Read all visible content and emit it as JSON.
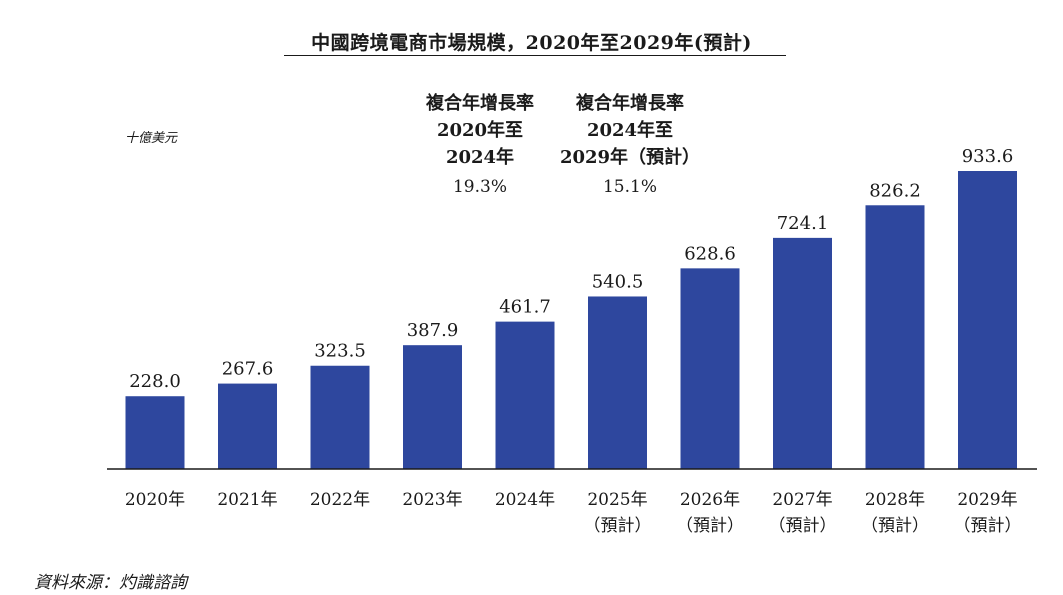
{
  "title": "中國跨境電商市場規模，2020年至2029年(預計)",
  "unit": "十億美元",
  "cagr": [
    {
      "header": "複合年增長率\n2020年至\n2024年",
      "value": "19.3%"
    },
    {
      "header": "複合年增長率\n2024年至\n2029年（預計）",
      "value": "15.1%"
    }
  ],
  "source": "資料來源：灼識諮詢",
  "colors": {
    "bar": "#2e479e",
    "axis": "#1a1a1a"
  },
  "chart_data": {
    "type": "bar",
    "categories": [
      "2020年",
      "2021年",
      "2022年",
      "2023年",
      "2024年",
      "2025年（預計）",
      "2026年（預計）",
      "2027年（預計）",
      "2028年（預計）",
      "2029年（預計）"
    ],
    "tick_labels": [
      [
        "2020年"
      ],
      [
        "2021年"
      ],
      [
        "2022年"
      ],
      [
        "2023年"
      ],
      [
        "2024年"
      ],
      [
        "2025年",
        "（預計）"
      ],
      [
        "2026年",
        "（預計）"
      ],
      [
        "2027年",
        "（預計）"
      ],
      [
        "2028年",
        "（預計）"
      ],
      [
        "2029年",
        "（預計）"
      ]
    ],
    "values": [
      228.0,
      267.6,
      323.5,
      387.9,
      461.7,
      540.5,
      628.6,
      724.1,
      826.2,
      933.6
    ],
    "value_labels": [
      "228.0",
      "267.6",
      "323.5",
      "387.9",
      "461.7",
      "540.5",
      "628.6",
      "724.1",
      "826.2",
      "933.6"
    ],
    "ylim": [
      0,
      933.6
    ],
    "grid": false
  }
}
